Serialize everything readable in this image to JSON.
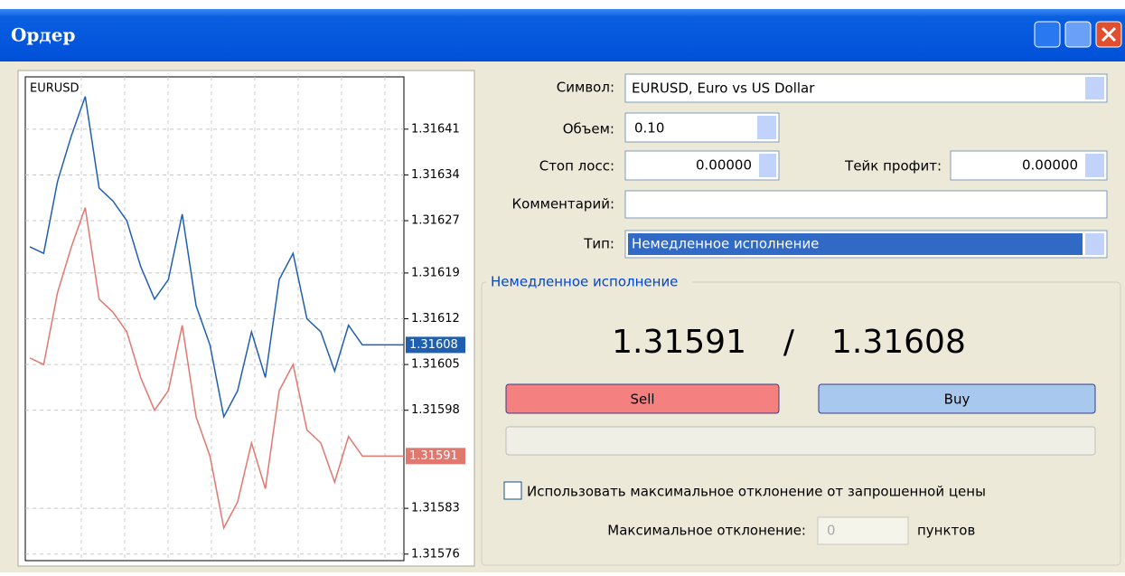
{
  "window": {
    "title": "Ордер"
  },
  "chart_data": {
    "type": "line",
    "title": "EURUSD",
    "ylim": [
      1.31575,
      1.31649
    ],
    "yticks": [
      1.31641,
      1.31634,
      1.31627,
      1.31619,
      1.31612,
      1.31605,
      1.31598,
      1.31583,
      1.31576
    ],
    "grid": true,
    "series": [
      {
        "color": "#1f5fb0",
        "current": 1.31608,
        "values": [
          1.31623,
          1.31622,
          1.31633,
          1.3164,
          1.31646,
          1.31632,
          1.3163,
          1.31627,
          1.3162,
          1.31615,
          1.31618,
          1.31628,
          1.31614,
          1.31608,
          1.31597,
          1.31601,
          1.3161,
          1.31603,
          1.31618,
          1.31622,
          1.31612,
          1.3161,
          1.31604,
          1.31611,
          1.31608,
          1.31608,
          1.31608,
          1.31608
        ]
      },
      {
        "color": "#e07870",
        "current": 1.31591,
        "values": [
          1.31606,
          1.31605,
          1.31616,
          1.31623,
          1.31629,
          1.31615,
          1.31613,
          1.3161,
          1.31603,
          1.31598,
          1.31601,
          1.31611,
          1.31597,
          1.31591,
          1.3158,
          1.31584,
          1.31593,
          1.31586,
          1.31601,
          1.31605,
          1.31595,
          1.31593,
          1.31587,
          1.31594,
          1.31591,
          1.31591,
          1.31591,
          1.31591
        ]
      }
    ]
  },
  "form": {
    "symbol_label": "Символ:",
    "symbol": "EURUSD, Euro vs US Dollar",
    "volume_label": "Объем:",
    "volume": "0.10",
    "stop_loss_label": "Стоп лосс:",
    "stop_loss": "0.00000",
    "take_profit_label": "Тейк профит:",
    "take_profit": "0.00000",
    "comment_label": "Комментарий:",
    "type_label": "Тип:",
    "type": "Немедленное исполнение"
  },
  "execution": {
    "group_title": "Немедленное исполнение",
    "bid": "1.31591",
    "separator": "/",
    "ask": "1.31608",
    "sell": "Sell",
    "buy": "Buy",
    "deviation_checkbox": "Использовать максимальное отклонение от запрошенной цены",
    "deviation_label": "Максимальное отклонение:",
    "deviation": "0",
    "deviation_unit": "пунктов"
  }
}
